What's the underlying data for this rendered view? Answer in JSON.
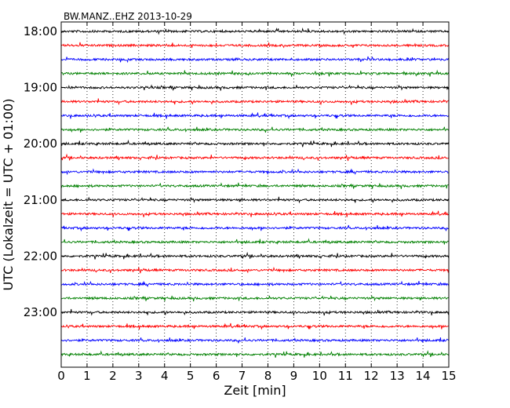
{
  "chart_data": {
    "type": "line",
    "title": "BW.MANZ..EHZ 2013-10-29",
    "xlabel": "Zeit  [min]",
    "ylabel": "UTC (Lokalzeit = UTC + 01:00)",
    "xlim": [
      0,
      15
    ],
    "x_ticks": [
      "0",
      "1",
      "2",
      "3",
      "4",
      "5",
      "6",
      "7",
      "8",
      "9",
      "10",
      "11",
      "12",
      "13",
      "14",
      "15"
    ],
    "y_ticks": [
      "18:00",
      "19:00",
      "20:00",
      "21:00",
      "22:00",
      "23:00"
    ],
    "grid": "vertical dotted",
    "trace_interval_minutes": 15,
    "trace_start": "18:00",
    "trace_count": 24,
    "trace_colors": [
      "#000000",
      "#ff0000",
      "#0000ff",
      "#008000"
    ]
  }
}
